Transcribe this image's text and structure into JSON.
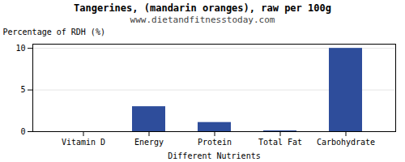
{
  "chart_data": {
    "type": "bar",
    "title": "Tangerines, (mandarin oranges), raw per 100g",
    "subtitle": "www.dietandfitnesstoday.com",
    "categories": [
      "Vitamin D",
      "Energy",
      "Protein",
      "Total Fat",
      "Carbohydrate"
    ],
    "values": [
      0,
      3.0,
      1.1,
      0.1,
      10.0
    ],
    "color": "#2e4d9b",
    "xlabel": "Different Nutrients",
    "ylabel": "Percentage of RDH (%)",
    "ylim": [
      0,
      10.5
    ],
    "yticks": [
      0,
      5,
      10
    ],
    "grid": true
  }
}
